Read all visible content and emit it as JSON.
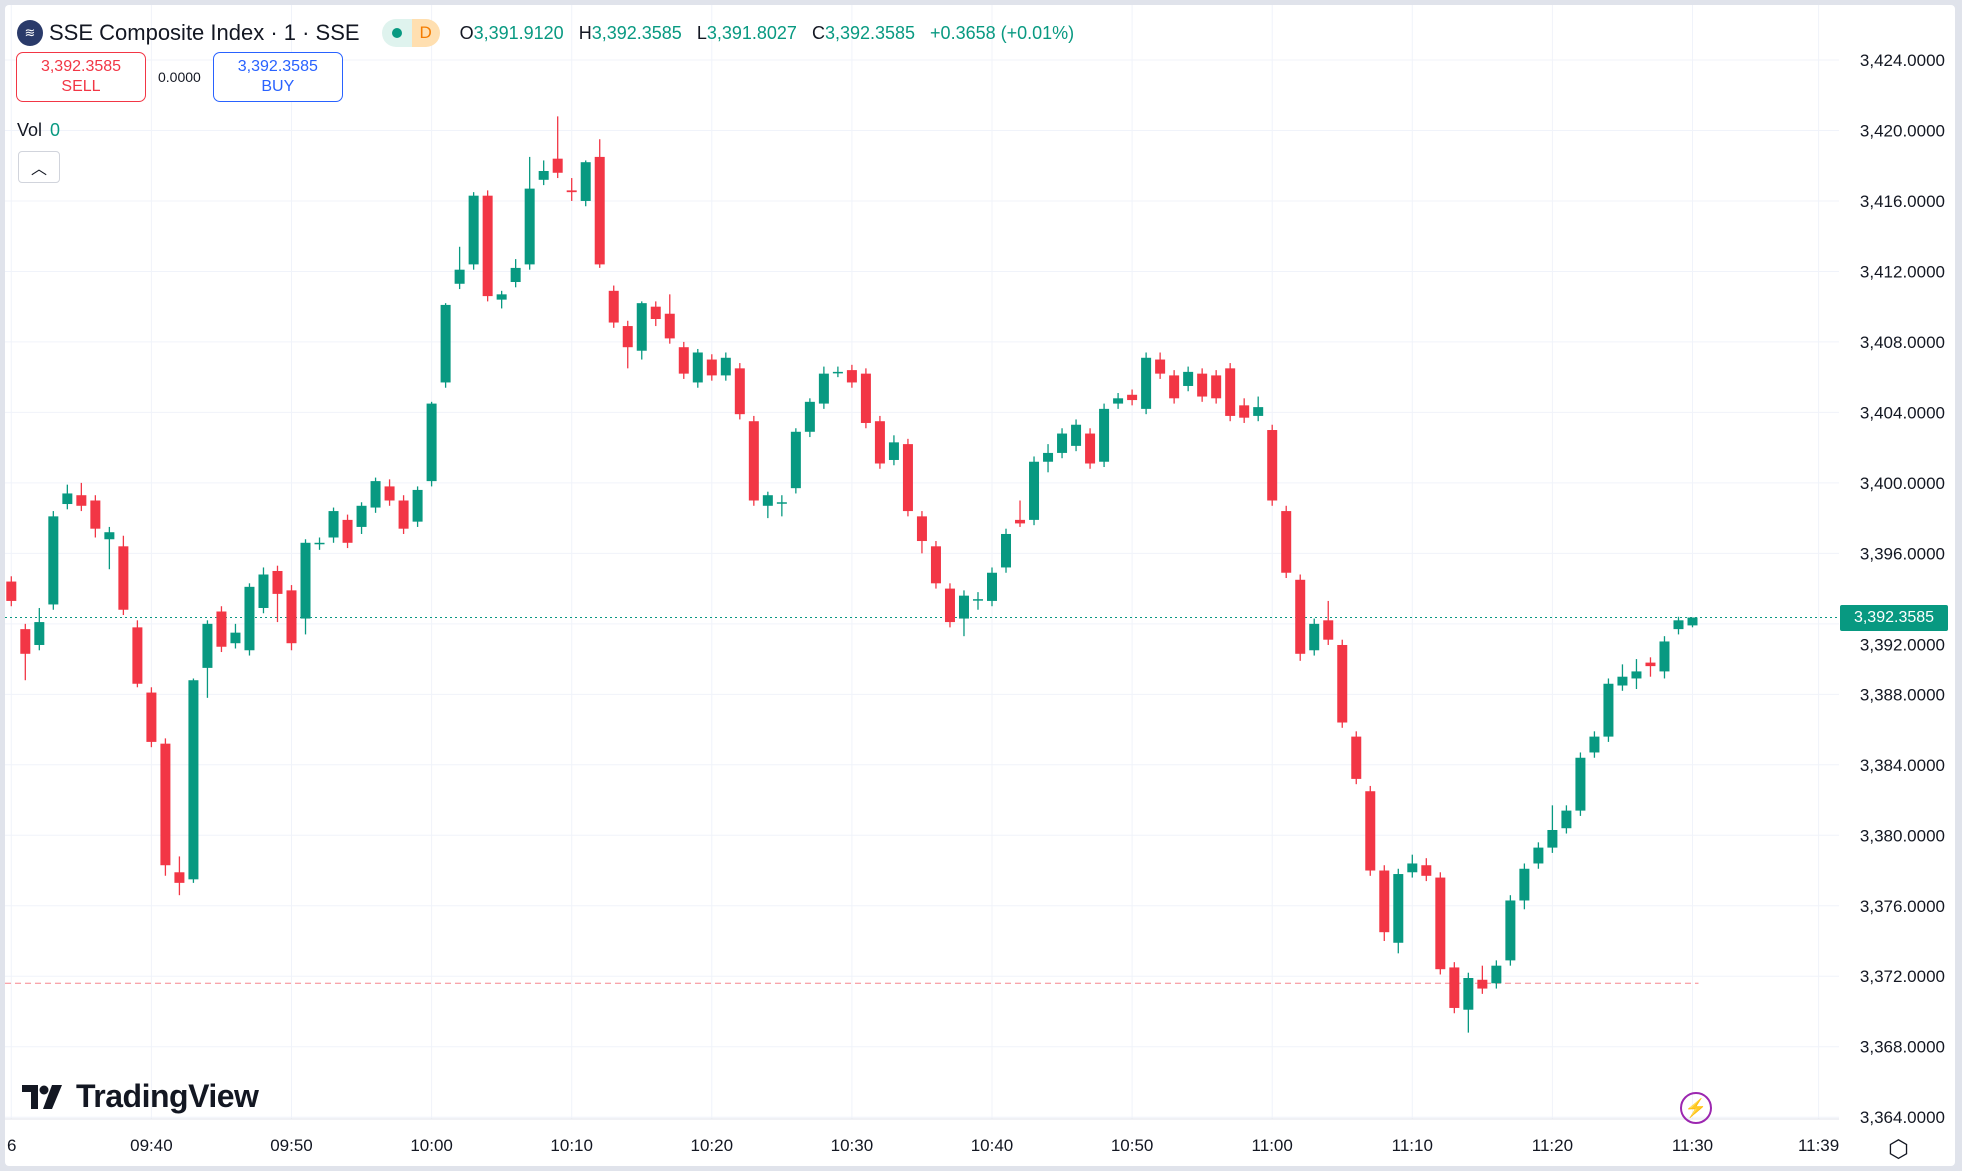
{
  "header": {
    "symbol_title": "SSE Composite Index · 1 · SSE",
    "market_status_badge": "D",
    "ohlc": {
      "o_label": "O",
      "o": "3,391.9120",
      "h_label": "H",
      "h": "3,392.3585",
      "l_label": "L",
      "l": "3,391.8027",
      "c_label": "C",
      "c": "3,392.3585",
      "change": "+0.3658 (+0.01%)"
    }
  },
  "trade": {
    "sell_price": "3,392.3585",
    "sell_label": "SELL",
    "spread": "0.0000",
    "buy_price": "3,392.3585",
    "buy_label": "BUY"
  },
  "volume": {
    "label": "Vol",
    "value": "0"
  },
  "branding": {
    "logo_text": "TradingView"
  },
  "colors": {
    "up": "#089981",
    "down": "#f23645",
    "accent": "#2962ff",
    "grid": "#f0f3fa"
  },
  "icons": {
    "symbol_logo": "sse-logo-icon",
    "collapse": "chevron-up-icon",
    "alert": "lightning-icon",
    "settings": "gear-icon"
  },
  "chart_data": {
    "type": "candlestick",
    "interval": "1 minute",
    "ylim": [
      3362,
      3426
    ],
    "y_ticks": [
      "3,424.0000",
      "3,420.0000",
      "3,416.0000",
      "3,412.0000",
      "3,408.0000",
      "3,404.0000",
      "3,400.0000",
      "3,396.0000",
      "3,392.0000",
      "3,388.0000",
      "3,384.0000",
      "3,380.0000",
      "3,376.0000",
      "3,372.0000",
      "3,368.0000",
      "3,364.0000"
    ],
    "x_ticks": [
      "6",
      "09:40",
      "09:50",
      "10:00",
      "10:10",
      "10:20",
      "10:30",
      "10:40",
      "10:50",
      "11:00",
      "11:10",
      "11:20",
      "11:30",
      "11:39"
    ],
    "start_time": "09:30",
    "last_price": "3,392.3585",
    "last_price_value": 3392.3585,
    "reference_line_value": 3371.6,
    "candles_ohlc": [
      [
        3394.4,
        3394.7,
        3393.0,
        3393.3
      ],
      [
        3391.7,
        3392.0,
        3388.8,
        3390.3
      ],
      [
        3390.8,
        3392.9,
        3390.5,
        3392.1
      ],
      [
        3393.1,
        3398.4,
        3392.8,
        3398.1
      ],
      [
        3398.8,
        3399.9,
        3398.5,
        3399.4
      ],
      [
        3399.3,
        3400.0,
        3398.4,
        3398.7
      ],
      [
        3399.0,
        3399.3,
        3396.9,
        3397.4
      ],
      [
        3396.8,
        3397.5,
        3395.1,
        3397.2
      ],
      [
        3396.4,
        3397.0,
        3392.5,
        3392.8
      ],
      [
        3391.8,
        3392.2,
        3388.4,
        3388.6
      ],
      [
        3388.1,
        3388.4,
        3385.0,
        3385.3
      ],
      [
        3385.2,
        3385.5,
        3377.7,
        3378.3
      ],
      [
        3377.9,
        3378.8,
        3376.6,
        3377.3
      ],
      [
        3377.5,
        3388.9,
        3377.3,
        3388.8
      ],
      [
        3389.5,
        3392.2,
        3387.8,
        3392.0
      ],
      [
        3392.7,
        3393.0,
        3390.4,
        3390.7
      ],
      [
        3390.9,
        3392.0,
        3390.6,
        3391.5
      ],
      [
        3390.5,
        3394.3,
        3390.2,
        3394.1
      ],
      [
        3392.9,
        3395.2,
        3392.6,
        3394.8
      ],
      [
        3395.0,
        3395.3,
        3392.1,
        3393.7
      ],
      [
        3393.9,
        3394.2,
        3390.5,
        3390.9
      ],
      [
        3392.3,
        3396.8,
        3391.4,
        3396.6
      ],
      [
        3396.6,
        3396.9,
        3396.2,
        3396.6
      ],
      [
        3396.9,
        3398.6,
        3396.6,
        3398.4
      ],
      [
        3397.9,
        3398.2,
        3396.3,
        3396.6
      ],
      [
        3397.5,
        3398.9,
        3397.1,
        3398.7
      ],
      [
        3398.6,
        3400.3,
        3398.3,
        3400.1
      ],
      [
        3399.8,
        3400.2,
        3398.7,
        3399.0
      ],
      [
        3399.0,
        3399.3,
        3397.1,
        3397.4
      ],
      [
        3397.8,
        3399.8,
        3397.5,
        3399.6
      ],
      [
        3400.1,
        3404.6,
        3399.8,
        3404.5
      ],
      [
        3405.7,
        3410.2,
        3405.4,
        3410.1
      ],
      [
        3411.3,
        3413.4,
        3411.0,
        3412.1
      ],
      [
        3412.4,
        3416.5,
        3412.1,
        3416.3
      ],
      [
        3416.3,
        3416.6,
        3410.3,
        3410.6
      ],
      [
        3410.4,
        3410.9,
        3409.9,
        3410.7
      ],
      [
        3411.4,
        3412.7,
        3411.1,
        3412.2
      ],
      [
        3412.4,
        3418.5,
        3412.1,
        3416.7
      ],
      [
        3417.2,
        3418.3,
        3416.9,
        3417.7
      ],
      [
        3418.4,
        3420.8,
        3417.3,
        3417.6
      ],
      [
        3416.6,
        3417.3,
        3416.0,
        3416.5
      ],
      [
        3416.0,
        3418.3,
        3415.7,
        3418.2
      ],
      [
        3418.5,
        3419.5,
        3412.2,
        3412.4
      ],
      [
        3410.9,
        3411.2,
        3408.8,
        3409.1
      ],
      [
        3408.9,
        3409.2,
        3406.5,
        3407.7
      ],
      [
        3407.5,
        3410.3,
        3407.0,
        3410.2
      ],
      [
        3410.0,
        3410.3,
        3408.9,
        3409.3
      ],
      [
        3409.6,
        3410.7,
        3407.9,
        3408.2
      ],
      [
        3407.7,
        3408.0,
        3405.9,
        3406.2
      ],
      [
        3405.7,
        3407.6,
        3405.4,
        3407.4
      ],
      [
        3407.0,
        3407.3,
        3405.8,
        3406.1
      ],
      [
        3406.1,
        3407.4,
        3405.8,
        3407.1
      ],
      [
        3406.5,
        3406.8,
        3403.6,
        3403.9
      ],
      [
        3403.5,
        3403.8,
        3398.7,
        3399.0
      ],
      [
        3398.7,
        3399.5,
        3398.0,
        3399.3
      ],
      [
        3398.9,
        3399.3,
        3398.1,
        3398.9
      ],
      [
        3399.7,
        3403.1,
        3399.4,
        3402.9
      ],
      [
        3402.9,
        3404.8,
        3402.6,
        3404.6
      ],
      [
        3404.5,
        3406.6,
        3404.2,
        3406.2
      ],
      [
        3406.3,
        3406.6,
        3406.0,
        3406.3
      ],
      [
        3406.4,
        3406.7,
        3405.4,
        3405.7
      ],
      [
        3406.2,
        3406.5,
        3403.1,
        3403.4
      ],
      [
        3403.5,
        3403.8,
        3400.8,
        3401.1
      ],
      [
        3401.3,
        3402.7,
        3401.0,
        3402.3
      ],
      [
        3402.2,
        3402.5,
        3398.1,
        3398.4
      ],
      [
        3398.1,
        3398.4,
        3396.0,
        3396.7
      ],
      [
        3396.4,
        3396.7,
        3394.0,
        3394.3
      ],
      [
        3394.0,
        3394.3,
        3391.8,
        3392.1
      ],
      [
        3392.3,
        3393.9,
        3391.3,
        3393.6
      ],
      [
        3393.4,
        3393.8,
        3392.8,
        3393.4
      ],
      [
        3393.3,
        3395.2,
        3393.0,
        3394.9
      ],
      [
        3395.2,
        3397.4,
        3394.9,
        3397.1
      ],
      [
        3397.9,
        3399.0,
        3397.5,
        3397.7
      ],
      [
        3397.9,
        3401.5,
        3397.6,
        3401.2
      ],
      [
        3401.2,
        3402.2,
        3400.6,
        3401.7
      ],
      [
        3401.7,
        3403.1,
        3401.4,
        3402.8
      ],
      [
        3402.1,
        3403.6,
        3401.8,
        3403.3
      ],
      [
        3402.8,
        3403.1,
        3400.8,
        3401.1
      ],
      [
        3401.2,
        3404.5,
        3400.9,
        3404.2
      ],
      [
        3404.5,
        3405.1,
        3404.2,
        3404.8
      ],
      [
        3405.0,
        3405.3,
        3404.4,
        3404.7
      ],
      [
        3404.2,
        3407.4,
        3403.9,
        3407.1
      ],
      [
        3407.0,
        3407.4,
        3405.9,
        3406.2
      ],
      [
        3406.1,
        3406.4,
        3404.5,
        3404.8
      ],
      [
        3405.5,
        3406.6,
        3405.2,
        3406.3
      ],
      [
        3406.2,
        3406.5,
        3404.6,
        3404.9
      ],
      [
        3406.1,
        3406.4,
        3404.5,
        3404.8
      ],
      [
        3406.5,
        3406.8,
        3403.5,
        3403.8
      ],
      [
        3404.4,
        3404.8,
        3403.4,
        3403.7
      ],
      [
        3403.8,
        3404.9,
        3403.5,
        3404.3
      ],
      [
        3403.0,
        3403.3,
        3398.7,
        3399.0
      ],
      [
        3398.4,
        3398.7,
        3394.6,
        3394.9
      ],
      [
        3394.5,
        3394.8,
        3389.9,
        3390.3
      ],
      [
        3390.5,
        3392.3,
        3390.2,
        3392.0
      ],
      [
        3392.2,
        3393.3,
        3390.8,
        3391.1
      ],
      [
        3390.8,
        3391.1,
        3386.1,
        3386.4
      ],
      [
        3385.6,
        3385.9,
        3382.9,
        3383.2
      ],
      [
        3382.5,
        3382.8,
        3377.7,
        3378.0
      ],
      [
        3378.0,
        3378.3,
        3374.0,
        3374.5
      ],
      [
        3373.9,
        3378.1,
        3373.3,
        3377.8
      ],
      [
        3377.9,
        3378.9,
        3377.6,
        3378.4
      ],
      [
        3378.3,
        3378.7,
        3377.4,
        3377.7
      ],
      [
        3377.6,
        3377.9,
        3372.1,
        3372.4
      ],
      [
        3372.5,
        3372.8,
        3369.9,
        3370.2
      ],
      [
        3370.1,
        3372.2,
        3368.8,
        3371.9
      ],
      [
        3371.8,
        3372.6,
        3371.0,
        3371.3
      ],
      [
        3371.6,
        3372.9,
        3371.3,
        3372.6
      ],
      [
        3372.9,
        3376.6,
        3372.6,
        3376.3
      ],
      [
        3376.3,
        3378.4,
        3375.8,
        3378.1
      ],
      [
        3378.4,
        3379.6,
        3378.1,
        3379.3
      ],
      [
        3379.3,
        3381.7,
        3379.0,
        3380.3
      ],
      [
        3380.4,
        3381.7,
        3380.1,
        3381.4
      ],
      [
        3381.4,
        3384.7,
        3381.1,
        3384.4
      ],
      [
        3384.7,
        3385.9,
        3384.4,
        3385.6
      ],
      [
        3385.6,
        3388.9,
        3385.3,
        3388.6
      ],
      [
        3388.5,
        3389.7,
        3388.2,
        3389.0
      ],
      [
        3388.9,
        3390.0,
        3388.3,
        3389.3
      ],
      [
        3389.8,
        3390.1,
        3389.0,
        3389.6
      ],
      [
        3389.3,
        3391.3,
        3388.9,
        3391.0
      ],
      [
        3391.7,
        3392.4,
        3391.4,
        3392.2
      ],
      [
        3391.912,
        3392.3585,
        3391.8027,
        3392.3585
      ]
    ]
  }
}
